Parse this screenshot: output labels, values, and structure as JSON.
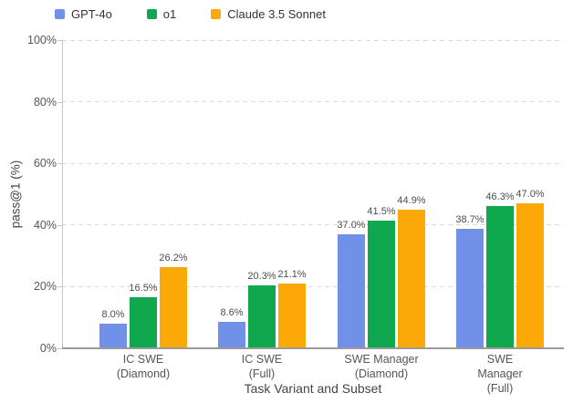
{
  "chart_data": {
    "type": "bar",
    "title": "",
    "xlabel": "Task Variant and Subset",
    "ylabel": "pass@1 (%)",
    "categories": [
      "IC SWE\n(Diamond)",
      "IC SWE\n(Full)",
      "SWE Manager\n(Diamond)",
      "SWE Manager\n(Full)"
    ],
    "series": [
      {
        "name": "GPT-4o",
        "color": "#7191e8",
        "values": [
          8.0,
          8.6,
          37.0,
          38.7
        ]
      },
      {
        "name": "o1",
        "color": "#10a84e",
        "values": [
          16.5,
          20.3,
          41.5,
          46.3
        ]
      },
      {
        "name": "Claude 3.5 Sonnet",
        "color": "#fca908",
        "values": [
          26.2,
          21.1,
          44.9,
          47.0
        ]
      }
    ],
    "value_labels": [
      [
        "8.0%",
        "8.6%",
        "37.0%",
        "38.7%"
      ],
      [
        "16.5%",
        "20.3%",
        "41.5%",
        "46.3%"
      ],
      [
        "26.2%",
        "21.1%",
        "44.9%",
        "47.0%"
      ]
    ],
    "ylim": [
      0,
      100
    ],
    "yticks": [
      0,
      20,
      40,
      60,
      80,
      100
    ],
    "ytick_labels": [
      "0%",
      "20%",
      "40%",
      "60%",
      "80%",
      "100%"
    ],
    "grid": {
      "horizontal": true,
      "style": "dashed",
      "color": "#dcdcdc"
    },
    "legend_position": "top-left",
    "axis_colors": {
      "spine_left": "#c6c6c6",
      "spine_bottom": "#9b9b9b",
      "tick_label": "#555555",
      "value_label": "#4d4d4d",
      "axis_title": "#444444"
    }
  }
}
